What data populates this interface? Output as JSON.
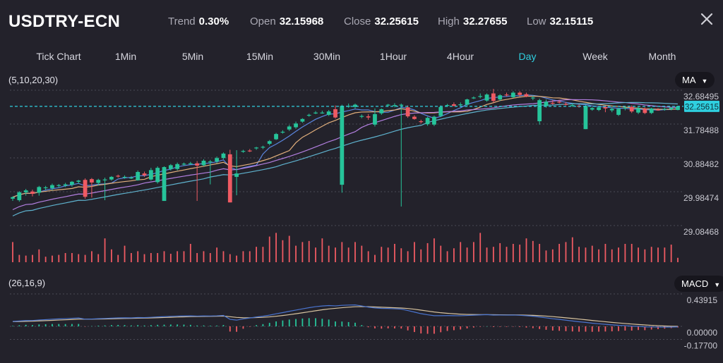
{
  "header": {
    "symbol": "USDTRY-ECN",
    "stats": [
      {
        "label": "Trend",
        "value": "0.30%"
      },
      {
        "label": "Open",
        "value": "32.15968"
      },
      {
        "label": "Close",
        "value": "32.25615"
      },
      {
        "label": "High",
        "value": "32.27655"
      },
      {
        "label": "Low",
        "value": "32.15115"
      }
    ],
    "close_icon": "close-x-icon"
  },
  "timeframes": {
    "items": [
      "Tick Chart",
      "1Min",
      "5Min",
      "15Min",
      "30Min",
      "1Hour",
      "4Hour",
      "Day",
      "Week",
      "Month"
    ],
    "active": "Day"
  },
  "colors": {
    "background": "#23222b",
    "up": "#26c49a",
    "down": "#ef5a62",
    "accent": "#2fd0e0",
    "ma5": "#5b86e0",
    "ma10": "#e3b07c",
    "ma20": "#b37fe0",
    "ma30": "#5fb3cf",
    "macd_dif": "#4a74cf",
    "macd_dea": "#d8c4a0"
  },
  "chart_data": [
    {
      "type": "candlestick",
      "title": "",
      "indicator_label": "(5,10,20,30)",
      "indicator_selector": "MA",
      "ma_periods": [
        5,
        10,
        20,
        30
      ],
      "y_ticks": [
        "32.68495",
        "31.78488",
        "30.88482",
        "29.98474",
        "29.08468"
      ],
      "ylim": [
        29.08468,
        32.68495
      ],
      "current_price": "32.25615",
      "grid": true,
      "ohlc": [
        [
          29.8,
          29.86,
          29.74,
          29.84
        ],
        [
          29.76,
          30.0,
          29.72,
          29.97
        ],
        [
          29.97,
          30.06,
          29.88,
          30.02
        ],
        [
          29.99,
          30.04,
          29.86,
          29.93
        ],
        [
          29.96,
          30.14,
          29.88,
          30.11
        ],
        [
          30.08,
          30.14,
          30.03,
          30.1
        ],
        [
          30.08,
          30.2,
          30.02,
          30.16
        ],
        [
          30.14,
          30.19,
          30.1,
          30.16
        ],
        [
          30.15,
          30.22,
          30.11,
          30.18
        ],
        [
          30.17,
          30.27,
          30.12,
          30.25
        ],
        [
          30.25,
          30.3,
          30.2,
          30.28
        ],
        [
          30.3,
          30.34,
          29.8,
          29.85
        ],
        [
          30.32,
          30.35,
          29.83,
          30.23
        ],
        [
          30.22,
          30.33,
          30.15,
          30.3
        ],
        [
          30.3,
          30.36,
          29.76,
          30.31
        ],
        [
          30.31,
          30.4,
          30.28,
          30.38
        ],
        [
          30.41,
          30.44,
          30.36,
          30.4
        ],
        [
          30.37,
          30.42,
          30.33,
          30.38
        ],
        [
          30.36,
          30.4,
          30.32,
          30.36
        ],
        [
          30.29,
          30.55,
          30.28,
          30.51
        ],
        [
          30.47,
          30.52,
          30.38,
          30.42
        ],
        [
          30.31,
          30.62,
          30.28,
          30.56
        ],
        [
          30.24,
          30.66,
          30.2,
          30.62
        ],
        [
          29.74,
          30.66,
          29.74,
          30.64
        ],
        [
          30.59,
          30.72,
          30.55,
          30.69
        ],
        [
          30.59,
          30.76,
          30.55,
          30.72
        ],
        [
          30.72,
          30.76,
          30.68,
          30.73
        ],
        [
          30.74,
          30.78,
          30.7,
          30.74
        ],
        [
          30.74,
          30.8,
          29.74,
          30.68
        ],
        [
          30.69,
          30.85,
          30.66,
          30.81
        ],
        [
          30.78,
          30.83,
          30.18,
          30.79
        ],
        [
          30.79,
          30.92,
          30.74,
          30.88
        ],
        [
          30.88,
          31.03,
          30.85,
          31.0
        ],
        [
          30.98,
          31.1,
          29.7,
          29.7
        ],
        [
          30.38,
          31.09,
          29.89,
          30.47
        ],
        [
          31.06,
          31.1,
          31.02,
          31.07
        ],
        [
          31.08,
          31.12,
          31.04,
          31.06
        ],
        [
          31.15,
          31.18,
          31.1,
          31.16
        ],
        [
          31.17,
          31.21,
          31.12,
          31.18
        ],
        [
          31.26,
          31.36,
          31.22,
          31.33
        ],
        [
          31.38,
          31.55,
          31.36,
          31.52
        ],
        [
          31.57,
          31.62,
          31.53,
          31.58
        ],
        [
          31.64,
          31.76,
          31.6,
          31.72
        ],
        [
          31.7,
          31.85,
          31.66,
          31.8
        ],
        [
          31.85,
          31.94,
          31.82,
          31.92
        ],
        [
          32.02,
          32.06,
          31.98,
          32.03
        ],
        [
          32.08,
          32.13,
          32.05,
          32.09
        ],
        [
          32.09,
          32.14,
          32.06,
          32.09
        ],
        [
          32.03,
          32.16,
          32.0,
          32.12
        ],
        [
          32.18,
          32.28,
          31.93,
          31.96
        ],
        [
          30.17,
          32.3,
          29.96,
          32.27
        ],
        [
          32.26,
          32.33,
          32.22,
          32.27
        ],
        [
          32.24,
          32.33,
          32.2,
          32.3
        ],
        [
          31.98,
          32.04,
          31.94,
          32.0
        ],
        [
          31.99,
          32.05,
          31.9,
          31.96
        ],
        [
          31.77,
          32.2,
          31.72,
          32.05
        ],
        [
          32.07,
          32.2,
          32.03,
          32.18
        ],
        [
          32.28,
          32.32,
          32.24,
          32.3
        ],
        [
          32.27,
          32.34,
          32.23,
          32.29
        ],
        [
          32.28,
          32.33,
          29.59,
          32.3
        ],
        [
          32.23,
          32.28,
          31.95,
          31.99
        ],
        [
          31.98,
          32.02,
          31.9,
          31.92
        ],
        [
          31.86,
          31.9,
          31.8,
          31.85
        ],
        [
          31.78,
          31.98,
          31.74,
          31.95
        ],
        [
          31.77,
          32.01,
          31.73,
          31.98
        ],
        [
          32.0,
          32.28,
          31.97,
          32.24
        ],
        [
          32.27,
          32.32,
          32.24,
          32.29
        ],
        [
          32.31,
          32.36,
          32.25,
          32.27
        ],
        [
          32.29,
          32.36,
          32.25,
          32.31
        ],
        [
          32.3,
          32.46,
          32.26,
          32.44
        ],
        [
          32.48,
          32.52,
          32.45,
          32.49
        ],
        [
          32.51,
          32.6,
          32.47,
          32.53
        ],
        [
          32.41,
          32.6,
          32.38,
          32.57
        ],
        [
          32.6,
          32.72,
          32.35,
          32.4
        ],
        [
          32.44,
          32.58,
          32.4,
          32.55
        ],
        [
          32.57,
          32.62,
          32.52,
          32.55
        ],
        [
          32.5,
          32.66,
          32.48,
          32.62
        ],
        [
          32.62,
          32.66,
          32.52,
          32.56
        ],
        [
          32.58,
          32.62,
          32.5,
          32.52
        ],
        [
          32.47,
          32.54,
          32.42,
          32.49
        ],
        [
          31.86,
          32.46,
          31.77,
          32.42
        ],
        [
          32.26,
          32.44,
          32.22,
          32.38
        ],
        [
          32.35,
          32.42,
          32.3,
          32.33
        ],
        [
          32.38,
          32.43,
          32.33,
          32.37
        ],
        [
          32.32,
          32.37,
          32.28,
          32.31
        ],
        [
          32.28,
          32.34,
          32.24,
          32.29
        ],
        [
          32.27,
          32.31,
          32.22,
          32.26
        ],
        [
          31.65,
          32.3,
          31.65,
          32.27
        ],
        [
          32.17,
          32.24,
          32.14,
          32.21
        ],
        [
          32.16,
          32.26,
          32.13,
          32.23
        ],
        [
          32.24,
          32.28,
          32.1,
          32.2
        ],
        [
          32.15,
          32.24,
          32.1,
          32.19
        ],
        [
          32.03,
          32.22,
          32.0,
          32.19
        ],
        [
          32.2,
          32.26,
          32.15,
          32.22
        ],
        [
          32.24,
          32.28,
          32.08,
          32.12
        ],
        [
          32.09,
          32.24,
          32.05,
          32.21
        ],
        [
          32.19,
          32.23,
          32.05,
          32.08
        ],
        [
          32.08,
          32.22,
          32.05,
          32.2
        ],
        [
          32.17,
          32.21,
          32.14,
          32.16
        ],
        [
          32.17,
          32.22,
          32.14,
          32.19
        ],
        [
          32.18,
          32.24,
          32.15,
          32.22
        ],
        [
          32.16,
          32.27,
          32.15,
          32.26
        ]
      ]
    },
    {
      "type": "bar",
      "title": "",
      "series_name": "",
      "volume_relative": [
        55,
        20,
        18,
        20,
        35,
        15,
        18,
        20,
        25,
        25,
        22,
        20,
        30,
        22,
        65,
        35,
        20,
        45,
        25,
        30,
        22,
        25,
        25,
        30,
        23,
        30,
        30,
        50,
        25,
        30,
        25,
        40,
        30,
        22,
        18,
        30,
        30,
        42,
        42,
        70,
        80,
        60,
        72,
        45,
        55,
        58,
        40,
        65,
        45,
        40,
        55,
        40,
        55,
        45,
        30,
        20,
        42,
        40,
        50,
        38,
        30,
        55,
        35,
        52,
        65,
        45,
        30,
        38,
        55,
        40,
        55,
        80,
        40,
        42,
        52,
        42,
        50,
        48,
        65,
        58,
        50,
        32,
        35,
        50,
        55,
        68,
        42,
        40,
        45,
        35,
        50,
        35,
        40,
        50,
        50,
        40,
        35,
        42,
        40,
        40,
        48,
        12
      ]
    },
    {
      "type": "bar+line",
      "title": "",
      "indicator_label": "(26,16,9)",
      "indicator_selector": "MACD",
      "macd_params": [
        26,
        16,
        9
      ],
      "y_ticks": [
        "0.43915",
        "0.00000",
        "-0.17700"
      ],
      "ylim": [
        -0.177,
        0.43915
      ]
    }
  ]
}
